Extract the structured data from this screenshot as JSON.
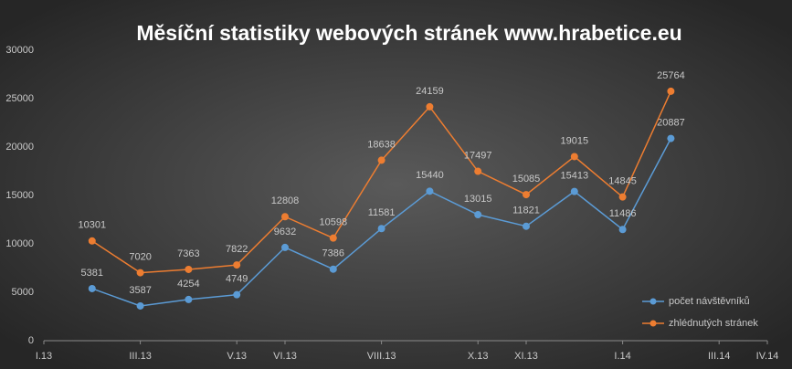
{
  "chart_data": {
    "type": "line",
    "title": "Měsíční statistiky webových stránek www.hrabetice.eu",
    "x": [
      "2013-02",
      "2013-03",
      "2013-04",
      "2013-05",
      "2013-06",
      "2013-07",
      "2013-08",
      "2013-09",
      "2013-10",
      "2013-11",
      "2013-12",
      "2014-01",
      "2014-02"
    ],
    "series": [
      {
        "name": "počet návštěvníků",
        "color": "#5b9bd5",
        "values": [
          5381,
          3587,
          4254,
          4749,
          9632,
          7386,
          11581,
          15440,
          13015,
          11821,
          15413,
          11486,
          20887
        ]
      },
      {
        "name": "zhlédnutých stránek",
        "color": "#ed7d31",
        "values": [
          10301,
          7020,
          7363,
          7822,
          12808,
          10598,
          18638,
          24159,
          17497,
          15085,
          19015,
          14845,
          25764
        ]
      }
    ],
    "xlim": [
      "2013-01",
      "2014-04"
    ],
    "xticks": [
      {
        "value": "2013-01",
        "label": "I.13"
      },
      {
        "value": "2013-03",
        "label": "III.13"
      },
      {
        "value": "2013-05",
        "label": "V.13"
      },
      {
        "value": "2013-06",
        "label": "VI.13"
      },
      {
        "value": "2013-08",
        "label": "VIII.13"
      },
      {
        "value": "2013-10",
        "label": "X.13"
      },
      {
        "value": "2013-11",
        "label": "XI.13"
      },
      {
        "value": "2014-01",
        "label": "I.14"
      },
      {
        "value": "2014-03",
        "label": "III.14"
      },
      {
        "value": "2014-04",
        "label": "IV.14"
      }
    ],
    "ylim": [
      0,
      30000
    ],
    "yticks": [
      0,
      5000,
      10000,
      15000,
      20000,
      25000,
      30000
    ],
    "legend": "bottom-right"
  }
}
